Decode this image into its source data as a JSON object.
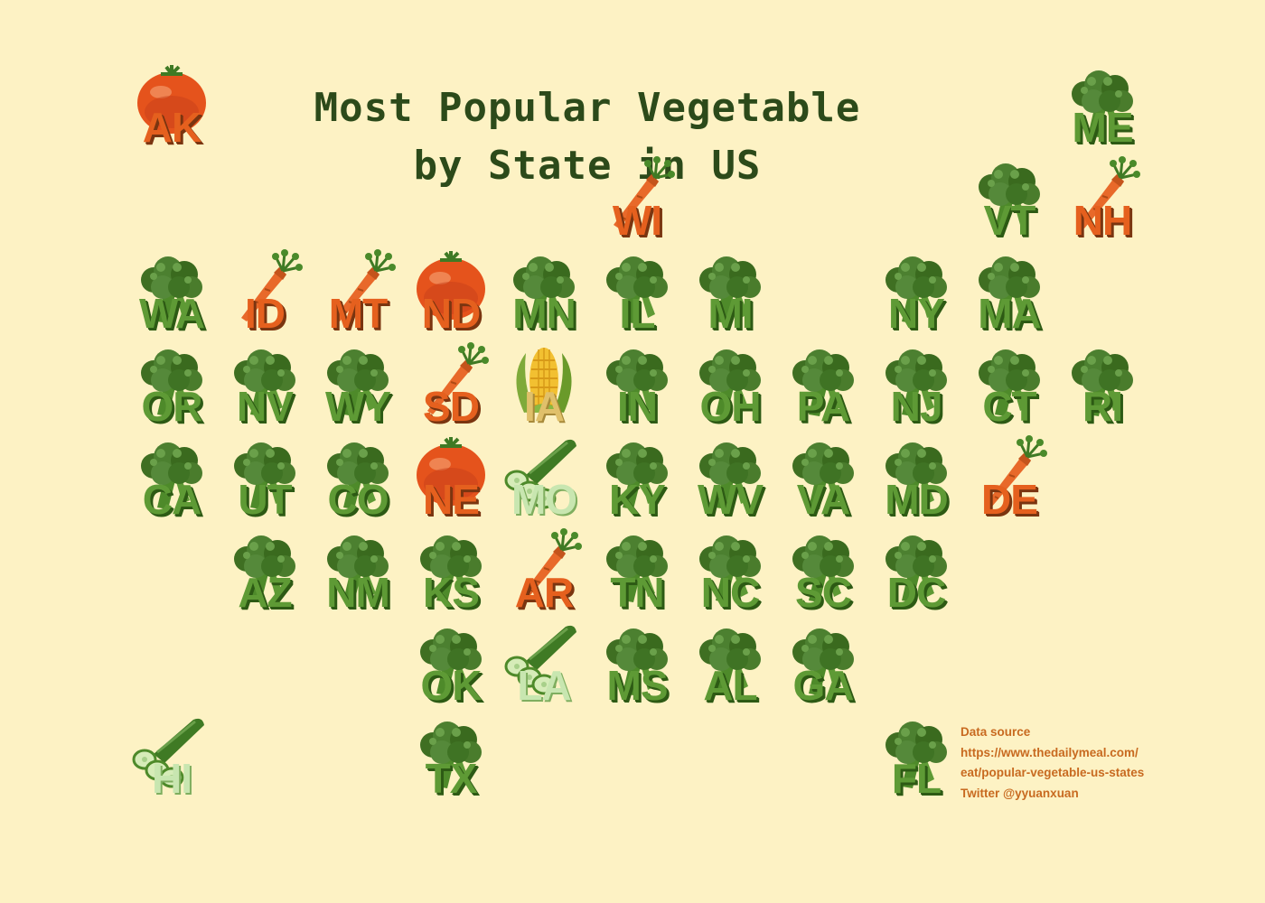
{
  "title": {
    "line1": "Most Popular Vegetable",
    "line2": "by State in US"
  },
  "source": {
    "label": "Data source",
    "url_line1": "https://www.thedailymeal.com/",
    "url_line2": "eat/popular-vegetable-us-states",
    "credit": "Twitter @yyuanxuan"
  },
  "colors": {
    "background": "#fdf2c4",
    "broccoli": "#5e9a35",
    "carrot": "#e5601e",
    "tomato": "#e5601e",
    "corn": "#e0c06a",
    "cucumber": "#c8e6b0",
    "title": "#2c4a1a",
    "source_text": "#c86a20"
  },
  "states": [
    {
      "abbr": "AK",
      "veg": "tomato",
      "col": 0,
      "row": 0
    },
    {
      "abbr": "ME",
      "veg": "broccoli",
      "col": 10,
      "row": 0
    },
    {
      "abbr": "WI",
      "veg": "carrot",
      "col": 5,
      "row": 1
    },
    {
      "abbr": "VT",
      "veg": "broccoli",
      "col": 9,
      "row": 1
    },
    {
      "abbr": "NH",
      "veg": "carrot",
      "col": 10,
      "row": 1
    },
    {
      "abbr": "WA",
      "veg": "broccoli",
      "col": 0,
      "row": 2
    },
    {
      "abbr": "ID",
      "veg": "carrot",
      "col": 1,
      "row": 2
    },
    {
      "abbr": "MT",
      "veg": "carrot",
      "col": 2,
      "row": 2
    },
    {
      "abbr": "ND",
      "veg": "tomato",
      "col": 3,
      "row": 2
    },
    {
      "abbr": "MN",
      "veg": "broccoli",
      "col": 4,
      "row": 2
    },
    {
      "abbr": "IL",
      "veg": "broccoli",
      "col": 5,
      "row": 2
    },
    {
      "abbr": "MI",
      "veg": "broccoli",
      "col": 6,
      "row": 2
    },
    {
      "abbr": "NY",
      "veg": "broccoli",
      "col": 8,
      "row": 2
    },
    {
      "abbr": "MA",
      "veg": "broccoli",
      "col": 9,
      "row": 2
    },
    {
      "abbr": "OR",
      "veg": "broccoli",
      "col": 0,
      "row": 3
    },
    {
      "abbr": "NV",
      "veg": "broccoli",
      "col": 1,
      "row": 3
    },
    {
      "abbr": "WY",
      "veg": "broccoli",
      "col": 2,
      "row": 3
    },
    {
      "abbr": "SD",
      "veg": "carrot",
      "col": 3,
      "row": 3
    },
    {
      "abbr": "IA",
      "veg": "corn",
      "col": 4,
      "row": 3
    },
    {
      "abbr": "IN",
      "veg": "broccoli",
      "col": 5,
      "row": 3
    },
    {
      "abbr": "OH",
      "veg": "broccoli",
      "col": 6,
      "row": 3
    },
    {
      "abbr": "PA",
      "veg": "broccoli",
      "col": 7,
      "row": 3
    },
    {
      "abbr": "NJ",
      "veg": "broccoli",
      "col": 8,
      "row": 3
    },
    {
      "abbr": "CT",
      "veg": "broccoli",
      "col": 9,
      "row": 3
    },
    {
      "abbr": "RI",
      "veg": "broccoli",
      "col": 10,
      "row": 3
    },
    {
      "abbr": "CA",
      "veg": "broccoli",
      "col": 0,
      "row": 4
    },
    {
      "abbr": "UT",
      "veg": "broccoli",
      "col": 1,
      "row": 4
    },
    {
      "abbr": "CO",
      "veg": "broccoli",
      "col": 2,
      "row": 4
    },
    {
      "abbr": "NE",
      "veg": "tomato",
      "col": 3,
      "row": 4
    },
    {
      "abbr": "MO",
      "veg": "cucumber",
      "col": 4,
      "row": 4
    },
    {
      "abbr": "KY",
      "veg": "broccoli",
      "col": 5,
      "row": 4
    },
    {
      "abbr": "WV",
      "veg": "broccoli",
      "col": 6,
      "row": 4
    },
    {
      "abbr": "VA",
      "veg": "broccoli",
      "col": 7,
      "row": 4
    },
    {
      "abbr": "MD",
      "veg": "broccoli",
      "col": 8,
      "row": 4
    },
    {
      "abbr": "DE",
      "veg": "carrot",
      "col": 9,
      "row": 4
    },
    {
      "abbr": "AZ",
      "veg": "broccoli",
      "col": 1,
      "row": 5
    },
    {
      "abbr": "NM",
      "veg": "broccoli",
      "col": 2,
      "row": 5
    },
    {
      "abbr": "KS",
      "veg": "broccoli",
      "col": 3,
      "row": 5
    },
    {
      "abbr": "AR",
      "veg": "carrot",
      "col": 4,
      "row": 5
    },
    {
      "abbr": "TN",
      "veg": "broccoli",
      "col": 5,
      "row": 5
    },
    {
      "abbr": "NC",
      "veg": "broccoli",
      "col": 6,
      "row": 5
    },
    {
      "abbr": "SC",
      "veg": "broccoli",
      "col": 7,
      "row": 5
    },
    {
      "abbr": "DC",
      "veg": "broccoli",
      "col": 8,
      "row": 5
    },
    {
      "abbr": "OK",
      "veg": "broccoli",
      "col": 3,
      "row": 6
    },
    {
      "abbr": "LA",
      "veg": "cucumber",
      "col": 4,
      "row": 6
    },
    {
      "abbr": "MS",
      "veg": "broccoli",
      "col": 5,
      "row": 6
    },
    {
      "abbr": "AL",
      "veg": "broccoli",
      "col": 6,
      "row": 6
    },
    {
      "abbr": "GA",
      "veg": "broccoli",
      "col": 7,
      "row": 6
    },
    {
      "abbr": "HI",
      "veg": "cucumber",
      "col": 0,
      "row": 7
    },
    {
      "abbr": "TX",
      "veg": "broccoli",
      "col": 3,
      "row": 7
    },
    {
      "abbr": "FL",
      "veg": "broccoli",
      "col": 8,
      "row": 7
    }
  ]
}
